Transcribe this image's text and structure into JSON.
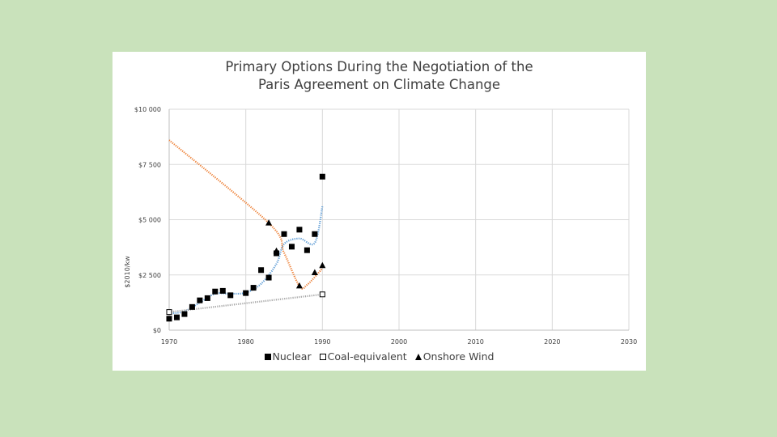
{
  "chart_data": {
    "type": "scatter",
    "title_lines": [
      "Primary Options During the Negotiation of the",
      "Paris Agreement on Climate Change"
    ],
    "xlabel": "",
    "ylabel": "$2010/kw",
    "xlim": [
      1970,
      2030
    ],
    "ylim": [
      0,
      10000
    ],
    "x_ticks": [
      1970,
      1980,
      1990,
      2000,
      2010,
      2020,
      2030
    ],
    "y_ticks": [
      0,
      2500,
      5000,
      7500,
      10000
    ],
    "y_tick_labels": [
      "$0",
      "$2 500",
      "$5 000",
      "$7 500",
      "$10 000"
    ],
    "grid": true,
    "legend_position": "bottom",
    "series": [
      {
        "name": "Nuclear",
        "marker": "filled-square",
        "color": "#000000",
        "points": [
          [
            1970,
            520
          ],
          [
            1971,
            580
          ],
          [
            1972,
            730
          ],
          [
            1973,
            1050
          ],
          [
            1974,
            1350
          ],
          [
            1975,
            1450
          ],
          [
            1976,
            1750
          ],
          [
            1977,
            1780
          ],
          [
            1978,
            1580
          ],
          [
            1980,
            1680
          ],
          [
            1981,
            1920
          ],
          [
            1982,
            2720
          ],
          [
            1983,
            2380
          ],
          [
            1984,
            3480
          ],
          [
            1985,
            4350
          ],
          [
            1986,
            3780
          ],
          [
            1987,
            4550
          ],
          [
            1988,
            3620
          ],
          [
            1989,
            4350
          ],
          [
            1990,
            6950
          ]
        ]
      },
      {
        "name": "Coal-equivalent",
        "marker": "open-square",
        "color": "#000000",
        "points": [
          [
            1970,
            820
          ],
          [
            1990,
            1620
          ]
        ]
      },
      {
        "name": "Onshore Wind",
        "marker": "triangle",
        "color": "#000000",
        "points": [
          [
            1983,
            4850
          ],
          [
            1984,
            3580
          ],
          [
            1987,
            2000
          ],
          [
            1989,
            2600
          ],
          [
            1990,
            2920
          ]
        ]
      }
    ],
    "trendlines": [
      {
        "series": "Nuclear",
        "color": "#5b9bd5",
        "points": [
          [
            1970,
            750
          ],
          [
            1972,
            850
          ],
          [
            1974,
            1250
          ],
          [
            1976,
            1650
          ],
          [
            1978,
            1650
          ],
          [
            1980,
            1700
          ],
          [
            1982,
            2100
          ],
          [
            1984,
            3000
          ],
          [
            1985,
            3900
          ],
          [
            1987,
            4150
          ],
          [
            1989,
            3950
          ],
          [
            1990,
            5600
          ]
        ]
      },
      {
        "series": "Coal-equivalent",
        "color": "#a5a5a5",
        "points": [
          [
            1970,
            820
          ],
          [
            1990,
            1620
          ]
        ]
      },
      {
        "series": "Onshore Wind",
        "color": "#ed7d31",
        "points": [
          [
            1970,
            8600
          ],
          [
            1983,
            4850
          ],
          [
            1985,
            3500
          ],
          [
            1987,
            2000
          ],
          [
            1988,
            2050
          ],
          [
            1990,
            2800
          ]
        ]
      }
    ]
  }
}
